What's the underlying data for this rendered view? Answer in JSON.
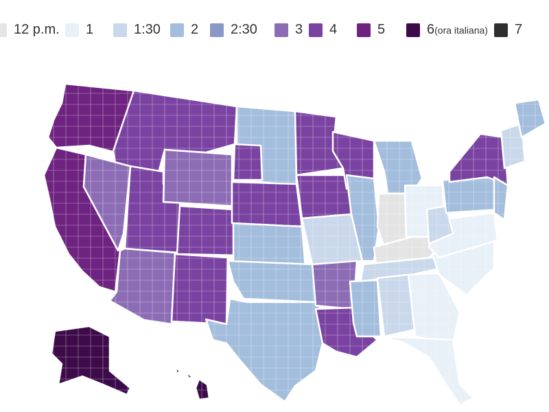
{
  "legend": {
    "items": [
      {
        "label": "12 p.m.",
        "color": "#e4e4e4"
      },
      {
        "label": "1",
        "color": "#e8f0f8"
      },
      {
        "label": "1:30",
        "color": "#c9d8ea"
      },
      {
        "label": "2",
        "color": "#a3bddd"
      },
      {
        "label": "2:30",
        "color": "#8a98c8"
      },
      {
        "label": "3",
        "color": "#8c6cb5"
      },
      {
        "label": "4",
        "color": "#7a43a1"
      },
      {
        "label": "5",
        "color": "#6e2380"
      },
      {
        "label": "6",
        "note": "(ora italiana)",
        "color": "#3d0b4a"
      },
      {
        "label": "7",
        "color": "#2f2f2f"
      }
    ]
  },
  "map": {
    "boundary_color": "#ffffff",
    "regions": [
      {
        "name": "pacific-northwest",
        "category": "5"
      },
      {
        "name": "california",
        "category": "5"
      },
      {
        "name": "idaho-montana",
        "category": "4"
      },
      {
        "name": "nevada",
        "category": "3"
      },
      {
        "name": "utah",
        "category": "4"
      },
      {
        "name": "arizona",
        "category": "3"
      },
      {
        "name": "wyoming",
        "category": "3"
      },
      {
        "name": "colorado",
        "category": "4"
      },
      {
        "name": "new-mexico",
        "category": "4"
      },
      {
        "name": "dakotas",
        "category": "2"
      },
      {
        "name": "south-dakota-west",
        "category": "4"
      },
      {
        "name": "nebraska",
        "category": "4"
      },
      {
        "name": "minnesota",
        "category": "4"
      },
      {
        "name": "iowa",
        "category": "4"
      },
      {
        "name": "wisconsin",
        "category": "4"
      },
      {
        "name": "kansas",
        "category": "2"
      },
      {
        "name": "oklahoma",
        "category": "2"
      },
      {
        "name": "texas",
        "category": "2"
      },
      {
        "name": "missouri",
        "category": "1:30"
      },
      {
        "name": "arkansas",
        "category": "3"
      },
      {
        "name": "louisiana",
        "category": "4"
      },
      {
        "name": "illinois",
        "category": "2"
      },
      {
        "name": "michigan",
        "category": "2"
      },
      {
        "name": "indiana",
        "category": "12 p.m."
      },
      {
        "name": "ohio",
        "category": "1"
      },
      {
        "name": "kentucky",
        "category": "12 p.m."
      },
      {
        "name": "tennessee",
        "category": "1:30"
      },
      {
        "name": "mississippi",
        "category": "2"
      },
      {
        "name": "alabama",
        "category": "1:30"
      },
      {
        "name": "georgia",
        "category": "1"
      },
      {
        "name": "florida",
        "category": "1"
      },
      {
        "name": "carolinas",
        "category": "1"
      },
      {
        "name": "virginia",
        "category": "1"
      },
      {
        "name": "west-virginia",
        "category": "1:30"
      },
      {
        "name": "pennsylvania",
        "category": "2"
      },
      {
        "name": "new-york",
        "category": "4"
      },
      {
        "name": "new-jersey",
        "category": "2"
      },
      {
        "name": "new-england",
        "category": "1:30"
      },
      {
        "name": "maine",
        "category": "2"
      },
      {
        "name": "alaska",
        "category": "6"
      },
      {
        "name": "hawaii",
        "category": "6"
      }
    ]
  }
}
